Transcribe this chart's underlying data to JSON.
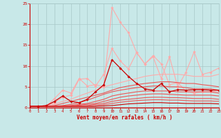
{
  "title": "",
  "xlabel": "Vent moyen/en rafales ( km/h )",
  "ylabel": "",
  "xlim": [
    0,
    23
  ],
  "ylim": [
    0,
    25
  ],
  "xticks": [
    0,
    1,
    2,
    3,
    4,
    5,
    6,
    7,
    8,
    9,
    10,
    11,
    12,
    13,
    14,
    15,
    16,
    17,
    18,
    19,
    20,
    21,
    22,
    23
  ],
  "yticks": [
    0,
    5,
    10,
    15,
    20,
    25
  ],
  "bg_color": "#c8e8e8",
  "grid_color": "#a8c8c8",
  "line_color_dark": "#cc0000",
  "series": [
    {
      "x": [
        0,
        1,
        2,
        3,
        4,
        5,
        6,
        7,
        8,
        9,
        10,
        11,
        12,
        13,
        14,
        15,
        16,
        17,
        18,
        19,
        20,
        21,
        22,
        23
      ],
      "y": [
        0.3,
        0.3,
        0.3,
        2.2,
        4.2,
        3.5,
        7.0,
        5.2,
        5.5,
        5.0,
        24.0,
        20.5,
        18.0,
        13.2,
        10.5,
        12.5,
        10.5,
        5.5,
        6.0,
        4.0,
        3.5,
        3.8,
        3.8,
        4.0
      ],
      "color": "#ffaaaa",
      "lw": 0.8,
      "marker": "D",
      "ms": 1.8
    },
    {
      "x": [
        0,
        1,
        2,
        3,
        4,
        5,
        6,
        7,
        8,
        9,
        10,
        11,
        12,
        13,
        14,
        15,
        16,
        17,
        18,
        19,
        20,
        21,
        22,
        23
      ],
      "y": [
        0.3,
        0.3,
        0.3,
        1.2,
        2.5,
        3.0,
        6.8,
        7.0,
        5.2,
        8.0,
        14.2,
        11.2,
        9.3,
        13.2,
        10.5,
        12.2,
        7.0,
        12.2,
        5.0,
        8.5,
        13.4,
        8.0,
        8.5,
        9.5
      ],
      "color": "#ffaaaa",
      "lw": 0.8,
      "marker": "D",
      "ms": 1.8
    },
    {
      "x": [
        0,
        1,
        2,
        3,
        4,
        5,
        6,
        7,
        8,
        9,
        10,
        11,
        12,
        13,
        14,
        15,
        16,
        17,
        18,
        19,
        20,
        21,
        22,
        23
      ],
      "y": [
        0.3,
        0.3,
        0.5,
        0.8,
        1.5,
        2.0,
        2.8,
        3.5,
        4.2,
        5.0,
        5.5,
        6.0,
        6.5,
        7.0,
        7.5,
        7.8,
        8.0,
        8.0,
        8.0,
        7.8,
        7.5,
        7.5,
        7.5,
        8.0
      ],
      "color": "#ffaaaa",
      "lw": 0.8,
      "marker": null,
      "ms": 0
    },
    {
      "x": [
        0,
        1,
        2,
        3,
        4,
        5,
        6,
        7,
        8,
        9,
        10,
        11,
        12,
        13,
        14,
        15,
        16,
        17,
        18,
        19,
        20,
        21,
        22,
        23
      ],
      "y": [
        0.3,
        0.3,
        0.3,
        0.5,
        1.0,
        1.5,
        2.0,
        2.5,
        3.0,
        3.5,
        4.2,
        4.8,
        5.2,
        5.5,
        5.8,
        6.0,
        6.2,
        6.2,
        6.0,
        5.8,
        5.8,
        5.5,
        5.3,
        5.0
      ],
      "color": "#ee5555",
      "lw": 0.8,
      "marker": null,
      "ms": 0
    },
    {
      "x": [
        0,
        1,
        2,
        3,
        4,
        5,
        6,
        7,
        8,
        9,
        10,
        11,
        12,
        13,
        14,
        15,
        16,
        17,
        18,
        19,
        20,
        21,
        22,
        23
      ],
      "y": [
        0.3,
        0.3,
        0.3,
        0.3,
        0.5,
        0.8,
        1.2,
        1.8,
        2.5,
        3.2,
        3.8,
        4.2,
        4.5,
        4.8,
        5.0,
        5.2,
        5.2,
        5.0,
        5.0,
        4.8,
        4.5,
        4.5,
        4.5,
        4.2
      ],
      "color": "#ee5555",
      "lw": 0.8,
      "marker": null,
      "ms": 0
    },
    {
      "x": [
        0,
        1,
        2,
        3,
        4,
        5,
        6,
        7,
        8,
        9,
        10,
        11,
        12,
        13,
        14,
        15,
        16,
        17,
        18,
        19,
        20,
        21,
        22,
        23
      ],
      "y": [
        0.3,
        0.3,
        0.3,
        0.3,
        0.4,
        0.5,
        0.8,
        1.0,
        1.5,
        2.0,
        2.8,
        3.2,
        3.5,
        3.8,
        4.0,
        4.0,
        4.0,
        4.0,
        3.8,
        3.8,
        3.8,
        3.8,
        3.8,
        3.5
      ],
      "color": "#ee5555",
      "lw": 0.8,
      "marker": null,
      "ms": 0
    },
    {
      "x": [
        0,
        1,
        2,
        3,
        4,
        5,
        6,
        7,
        8,
        9,
        10,
        11,
        12,
        13,
        14,
        15,
        16,
        17,
        18,
        19,
        20,
        21,
        22,
        23
      ],
      "y": [
        0.3,
        0.3,
        0.3,
        0.3,
        0.3,
        0.4,
        0.6,
        0.8,
        1.0,
        1.5,
        2.0,
        2.5,
        2.8,
        3.0,
        3.2,
        3.3,
        3.3,
        3.2,
        3.1,
        3.0,
        3.0,
        3.0,
        3.0,
        2.8
      ],
      "color": "#ee5555",
      "lw": 0.8,
      "marker": null,
      "ms": 0
    },
    {
      "x": [
        0,
        1,
        2,
        3,
        4,
        5,
        6,
        7,
        8,
        9,
        10,
        11,
        12,
        13,
        14,
        15,
        16,
        17,
        18,
        19,
        20,
        21,
        22,
        23
      ],
      "y": [
        0.3,
        0.3,
        0.3,
        0.3,
        0.3,
        0.3,
        0.4,
        0.5,
        0.8,
        1.0,
        1.5,
        1.8,
        2.0,
        2.2,
        2.4,
        2.5,
        2.5,
        2.4,
        2.4,
        2.3,
        2.2,
        2.2,
        2.2,
        2.0
      ],
      "color": "#ee5555",
      "lw": 0.8,
      "marker": null,
      "ms": 0
    },
    {
      "x": [
        0,
        1,
        2,
        3,
        4,
        5,
        6,
        7,
        8,
        9,
        10,
        11,
        12,
        13,
        14,
        15,
        16,
        17,
        18,
        19,
        20,
        21,
        22,
        23
      ],
      "y": [
        0.3,
        0.3,
        0.3,
        0.3,
        0.3,
        0.3,
        0.3,
        0.3,
        0.5,
        0.7,
        1.0,
        1.3,
        1.5,
        1.7,
        1.8,
        1.9,
        1.9,
        1.8,
        1.8,
        1.7,
        1.6,
        1.6,
        1.6,
        1.5
      ],
      "color": "#ee5555",
      "lw": 0.8,
      "marker": null,
      "ms": 0
    },
    {
      "x": [
        0,
        1,
        2,
        3,
        4,
        5,
        6,
        7,
        8,
        9,
        10,
        11,
        12,
        13,
        14,
        15,
        16,
        17,
        18,
        19,
        20,
        21,
        22,
        23
      ],
      "y": [
        0.3,
        0.3,
        0.5,
        1.5,
        2.8,
        1.5,
        1.2,
        2.0,
        3.8,
        5.5,
        11.5,
        9.5,
        7.5,
        5.8,
        4.5,
        4.2,
        5.8,
        3.8,
        4.3,
        4.2,
        4.3,
        4.3,
        4.2,
        4.2
      ],
      "color": "#cc0000",
      "lw": 0.9,
      "marker": "D",
      "ms": 1.8
    },
    {
      "x": [
        0,
        1,
        2,
        3,
        4,
        5,
        6,
        7,
        8,
        9,
        10,
        11,
        12,
        13,
        14,
        15,
        16,
        17,
        18,
        19,
        20,
        21,
        22,
        23
      ],
      "y": [
        0.3,
        0.3,
        0.3,
        0.3,
        0.3,
        0.3,
        0.3,
        0.3,
        0.3,
        0.4,
        0.5,
        0.7,
        0.9,
        1.0,
        1.1,
        1.2,
        1.2,
        1.1,
        1.1,
        1.0,
        1.0,
        1.0,
        1.0,
        0.9
      ],
      "color": "#cc0000",
      "lw": 0.8,
      "marker": null,
      "ms": 0
    }
  ]
}
